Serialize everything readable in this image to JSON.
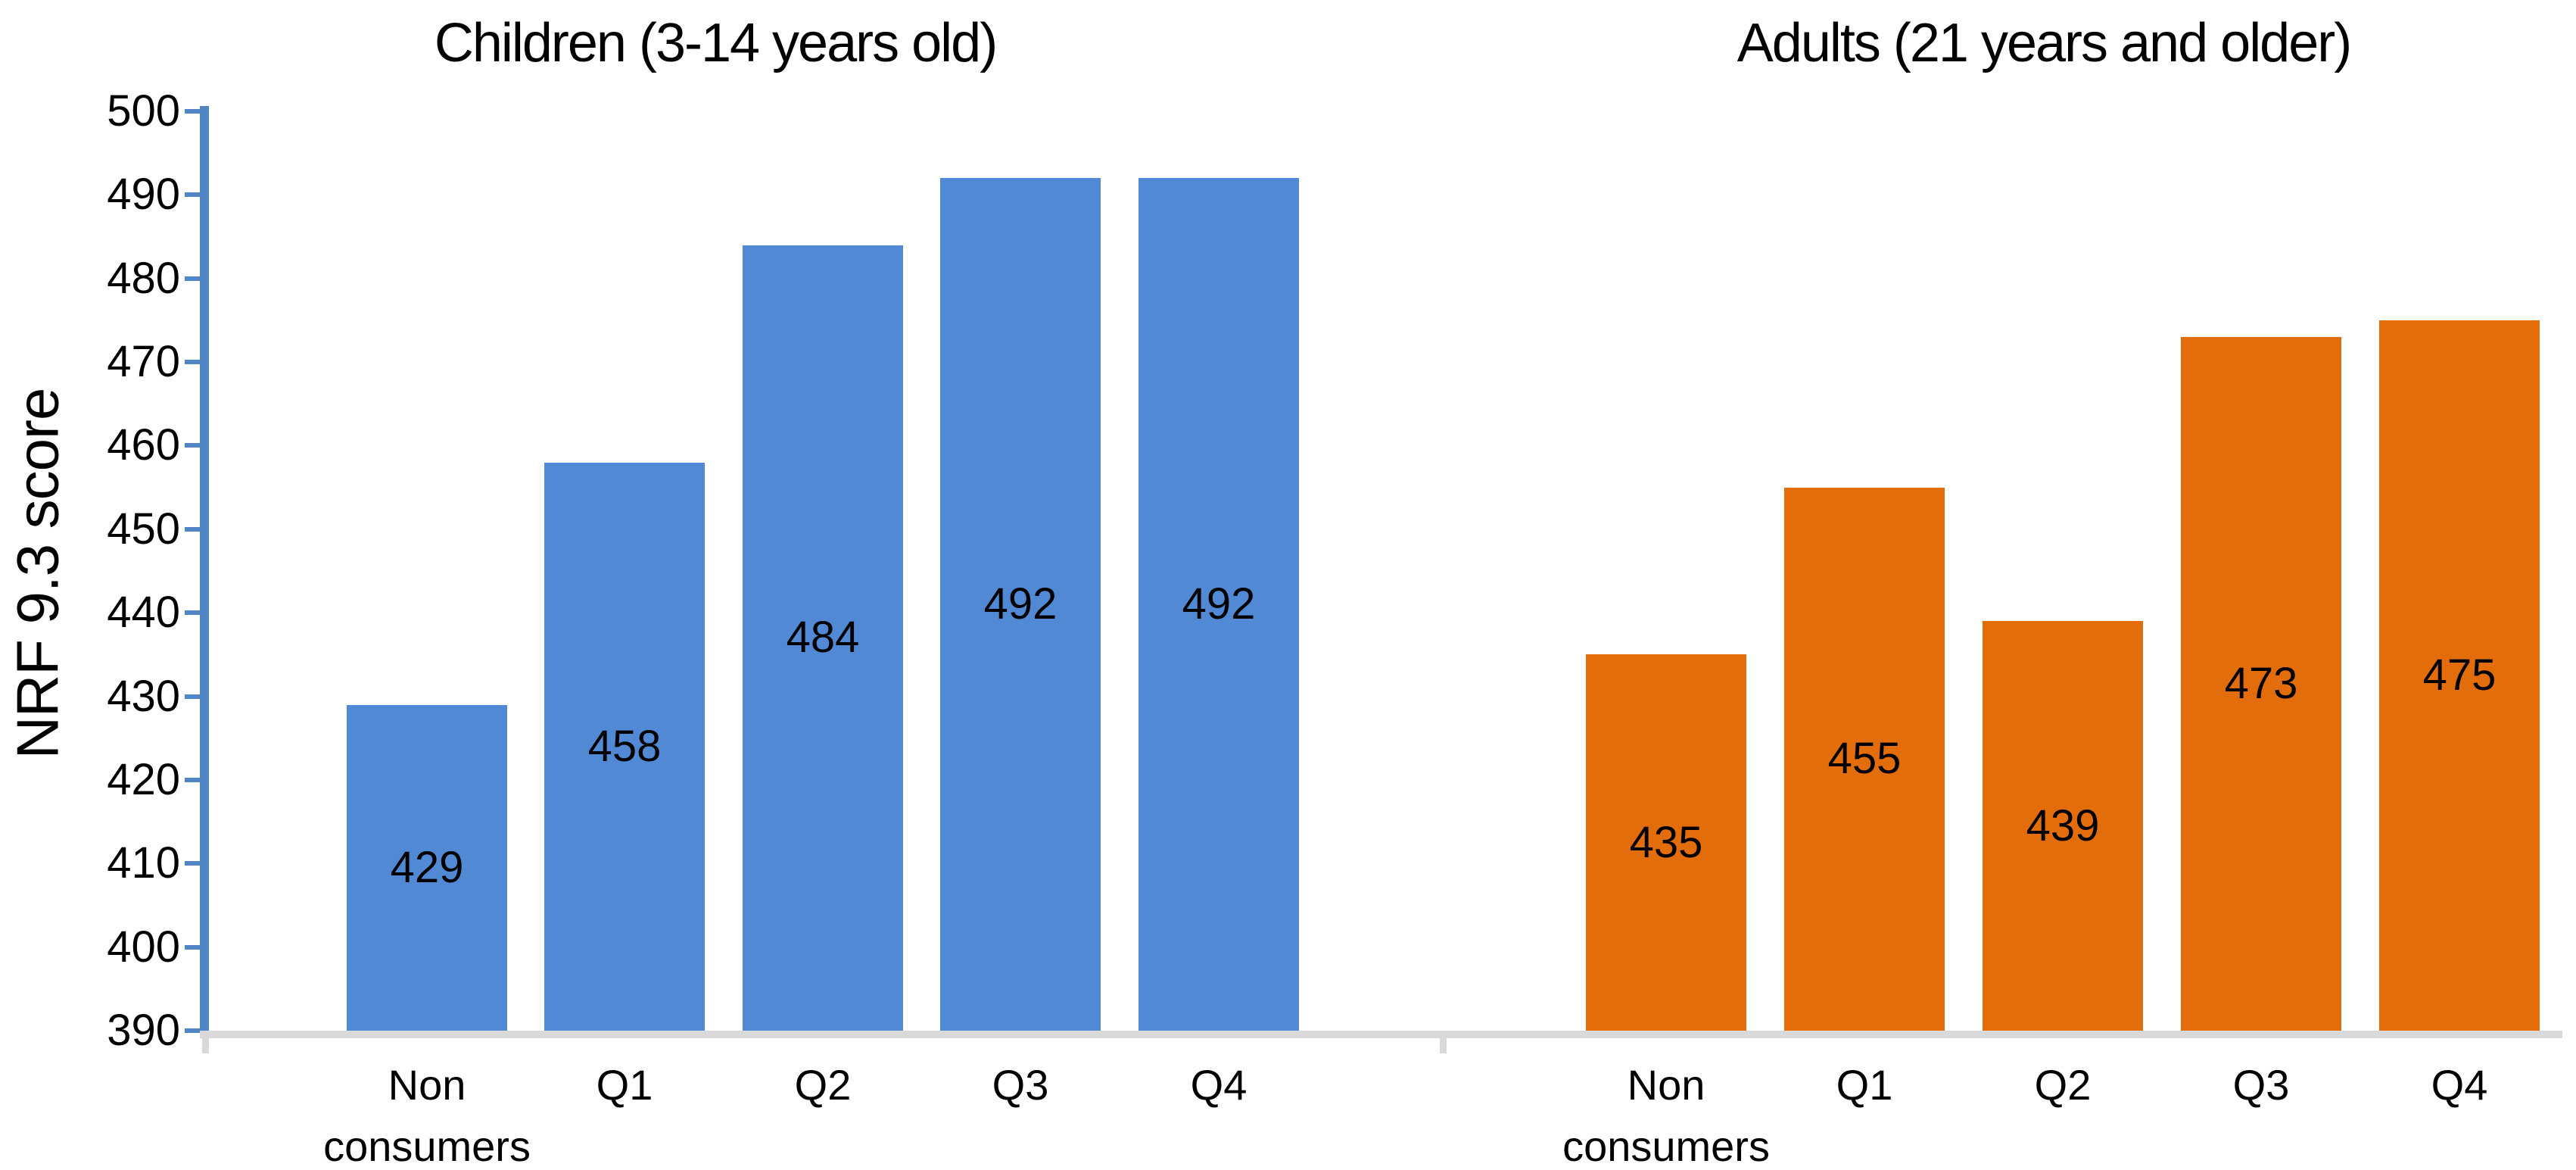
{
  "chart_data": [
    {
      "type": "bar",
      "title": "Children (3-14 years old)",
      "categories": [
        "Non consumers",
        "Q1",
        "Q2",
        "Q3",
        "Q4"
      ],
      "values": [
        429,
        458,
        484,
        492,
        492
      ],
      "bar_color": "#5289D4",
      "ylabel": "NRF 9.3 score",
      "ylim": [
        390,
        500
      ],
      "ytick_step": 10,
      "data_labels": "inside-center",
      "grid": false,
      "legend": "none"
    },
    {
      "type": "bar",
      "title": "Adults (21 years and older)",
      "categories": [
        "Non consumers",
        "Q1",
        "Q2",
        "Q3",
        "Q4"
      ],
      "values": [
        435,
        455,
        439,
        473,
        475
      ],
      "bar_color": "#E26D0A",
      "ylabel": "NRF 9.3 score",
      "ylim": [
        390,
        500
      ],
      "ytick_step": 10,
      "data_labels": "inside-center",
      "grid": false,
      "legend": "none"
    }
  ],
  "axis": {
    "ylabel": "NRF 9.3 score",
    "yticks": [
      500,
      490,
      480,
      470,
      460,
      450,
      440,
      430,
      420,
      410,
      400,
      390
    ],
    "axis_line_color": "#5185C6",
    "baseline_color": "#D9D9D9",
    "text_color": "#000000"
  }
}
